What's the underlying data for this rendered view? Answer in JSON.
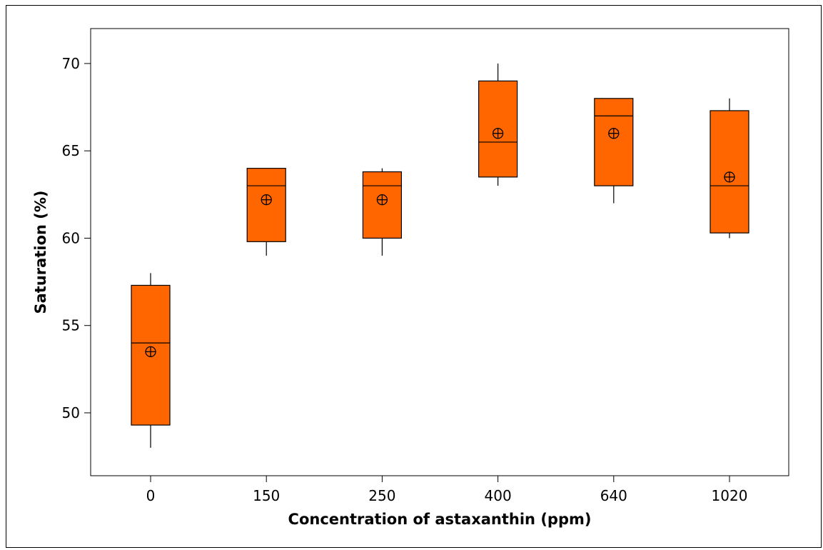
{
  "chart_data": {
    "type": "boxplot",
    "title": "",
    "xlabel": "Concentration of astaxanthin (ppm)",
    "ylabel": "Saturation (%)",
    "ylim": [
      46.4,
      72.0
    ],
    "yticks": [
      "50",
      "55",
      "60",
      "65",
      "70"
    ],
    "grid": false,
    "colors": {
      "box_fill": "#FF6600",
      "stroke": "#000000"
    },
    "categories": [
      "0",
      "150",
      "250",
      "400",
      "640",
      "1020"
    ],
    "boxes": [
      {
        "category": "0",
        "min": 48.0,
        "q1": 49.3,
        "median": 54.0,
        "q3": 57.3,
        "max": 58.0,
        "mean": 53.5
      },
      {
        "category": "150",
        "min": 59.0,
        "q1": 59.8,
        "median": 63.0,
        "q3": 64.0,
        "max": 64.0,
        "mean": 62.2
      },
      {
        "category": "250",
        "min": 59.0,
        "q1": 60.0,
        "median": 63.0,
        "q3": 63.8,
        "max": 64.0,
        "mean": 62.2
      },
      {
        "category": "400",
        "min": 63.0,
        "q1": 63.5,
        "median": 65.5,
        "q3": 69.0,
        "max": 70.0,
        "mean": 66.0
      },
      {
        "category": "640",
        "min": 62.0,
        "q1": 63.0,
        "median": 67.0,
        "q3": 68.0,
        "max": 68.0,
        "mean": 66.0
      },
      {
        "category": "1020",
        "min": 60.0,
        "q1": 60.3,
        "median": 63.0,
        "q3": 67.3,
        "max": 68.0,
        "mean": 63.5
      }
    ]
  }
}
